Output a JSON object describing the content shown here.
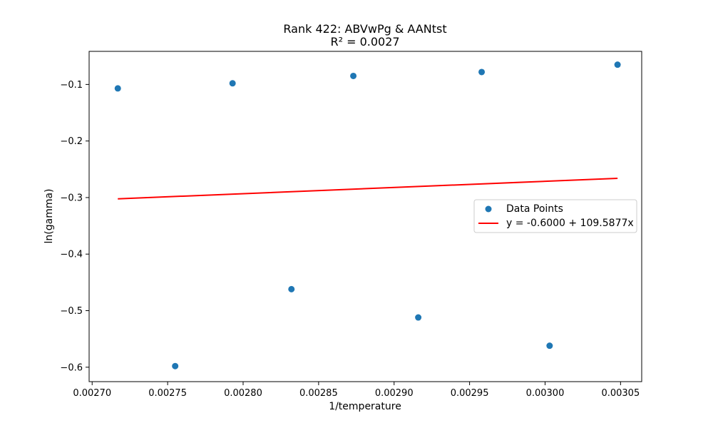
{
  "chart_data": {
    "type": "scatter",
    "title": "Rank 422: ABVwPg & AANtst",
    "subtitle": "R² = 0.0027",
    "xlabel": "1/temperature",
    "ylabel": "ln(gamma)",
    "xlim": [
      0.002698,
      0.003064
    ],
    "ylim": [
      -0.6255,
      -0.0415
    ],
    "x_ticks": [
      0.0027,
      0.00275,
      0.0028,
      0.00285,
      0.0029,
      0.00295,
      0.003,
      0.00305
    ],
    "x_tick_labels": [
      "0.00270",
      "0.00275",
      "0.00280",
      "0.00285",
      "0.00290",
      "0.00295",
      "0.00300",
      "0.00305"
    ],
    "y_ticks": [
      -0.6,
      -0.5,
      -0.4,
      -0.3,
      -0.2,
      -0.1
    ],
    "y_tick_labels": [
      "−0.6",
      "−0.5",
      "−0.4",
      "−0.3",
      "−0.2",
      "−0.1"
    ],
    "grid": false,
    "legend_position": "center-right",
    "series": [
      {
        "name": "Data Points",
        "kind": "scatter",
        "color": "#1f77b4",
        "x": [
          0.002717,
          0.002755,
          0.002793,
          0.002832,
          0.002873,
          0.002916,
          0.002958,
          0.003003,
          0.003048
        ],
        "y": [
          -0.107,
          -0.598,
          -0.098,
          -0.462,
          -0.085,
          -0.512,
          -0.078,
          -0.562,
          -0.065
        ]
      },
      {
        "name": "y = -0.6000 + 109.5877x",
        "kind": "line",
        "color": "#ff0000",
        "intercept": -0.6,
        "slope": 109.5877,
        "x_range": [
          0.002717,
          0.003048
        ]
      }
    ]
  }
}
